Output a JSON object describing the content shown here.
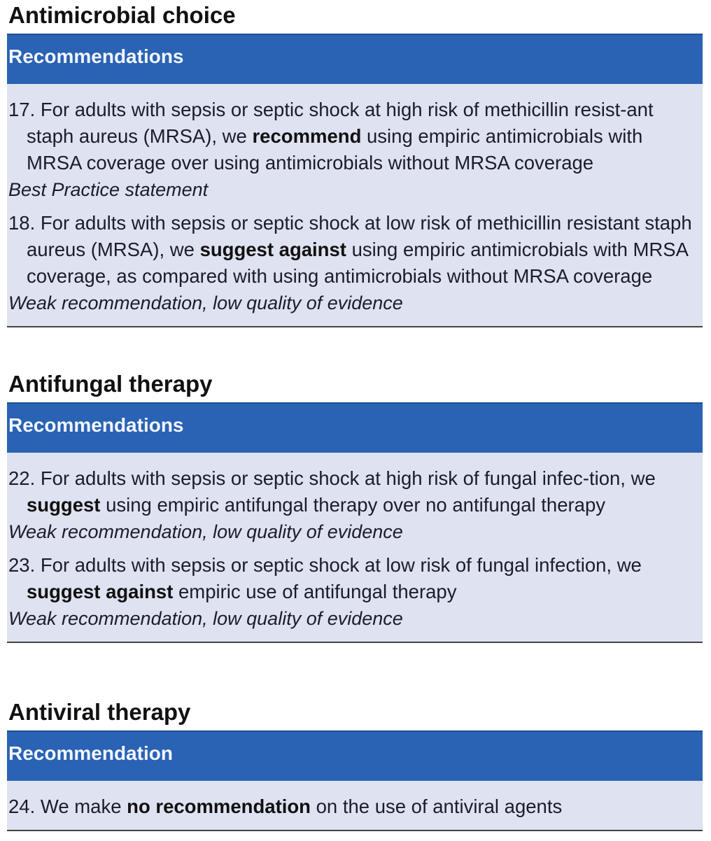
{
  "sections": [
    {
      "title": "Antimicrobial choice",
      "header": "Recommendations",
      "items": [
        {
          "before": "17. For adults with sepsis or septic shock at high risk of methicillin resist-ant staph aureus (MRSA), we ",
          "bold": "recommend",
          "after": " using empiric antimicrobials with MRSA coverage over using antimicrobials without MRSA coverage",
          "grade": "Best Practice statement"
        },
        {
          "before": "18. For adults with sepsis or septic shock at low risk of methicillin resistant staph aureus (MRSA), we ",
          "bold": "suggest against",
          "after": " using empiric antimicrobials with MRSA coverage, as compared with using antimicrobials without MRSA coverage",
          "grade": "Weak recommendation, low quality of evidence"
        }
      ]
    },
    {
      "title": "Antifungal therapy",
      "header": "Recommendations",
      "items": [
        {
          "before": "22. For adults with sepsis or septic shock at high risk of fungal infec-tion, we ",
          "bold": "suggest",
          "after": " using empiric antifungal therapy over no antifungal therapy",
          "grade": "Weak recommendation, low quality of evidence"
        },
        {
          "before": "23. For adults with sepsis or septic shock at low risk of fungal infection, we ",
          "bold": "suggest against",
          "after": " empiric use of antifungal therapy",
          "grade": "Weak recommendation, low quality of evidence"
        }
      ]
    },
    {
      "title": "Antiviral therapy",
      "header": "Recommendation",
      "items": [
        {
          "before": "24. We make ",
          "bold": "no recommendation",
          "after": " on the use of antiviral agents",
          "grade": ""
        }
      ]
    }
  ],
  "colors": {
    "header_bar": "#2a62b4",
    "body_background": "#dfe2f0"
  }
}
